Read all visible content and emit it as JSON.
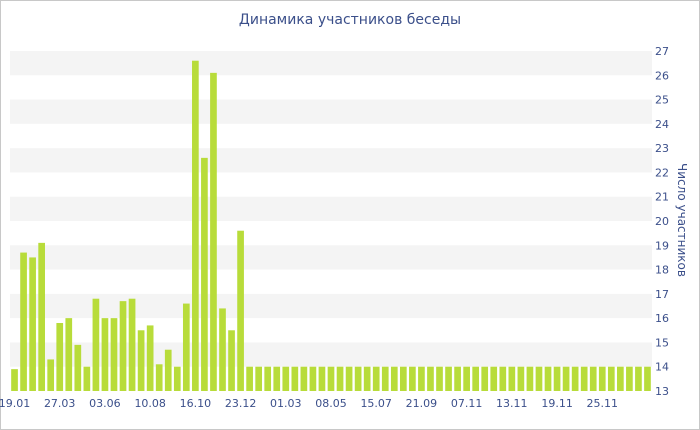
{
  "chart_data": {
    "type": "bar",
    "title": "Динамика участников беседы",
    "xlabel": "",
    "ylabel": "Число участников",
    "ylim": [
      13,
      27
    ],
    "yticks": [
      13,
      14,
      15,
      16,
      17,
      18,
      19,
      20,
      21,
      22,
      23,
      24,
      25,
      26,
      27
    ],
    "xtick_labels": [
      "19.01",
      "27.03",
      "03.06",
      "10.08",
      "16.10",
      "23.12",
      "01.03",
      "08.05",
      "15.07",
      "21.09",
      "07.11",
      "13.11",
      "19.11",
      "25.11"
    ],
    "values": [
      13.9,
      18.7,
      18.5,
      19.1,
      14.3,
      15.8,
      16.0,
      14.9,
      14.0,
      16.8,
      16.0,
      16.0,
      16.7,
      16.8,
      15.5,
      15.7,
      14.1,
      14.7,
      14.0,
      16.6,
      26.6,
      22.6,
      26.1,
      16.4,
      15.5,
      19.6,
      14.0,
      14.0,
      14.0,
      14.0,
      14.0,
      14.0,
      14.0,
      14.0,
      14.0,
      14.0,
      14.0,
      14.0,
      14.0,
      14.0,
      14.0,
      14.0,
      14.0,
      14.0,
      14.0,
      14.0,
      14.0,
      14.0,
      14.0,
      14.0,
      14.0,
      14.0,
      14.0,
      14.0,
      14.0,
      14.0,
      14.0,
      14.0,
      14.0,
      14.0,
      14.0,
      14.0,
      14.0,
      14.0,
      14.0,
      14.0,
      14.0,
      14.0,
      14.0,
      14.0,
      14.0
    ],
    "bar_color": "#b8dc3a",
    "stripe_color": "#f4f4f4",
    "axis_text_color": "#3b4f8a",
    "grid": "alternating horizontal bands",
    "legend": "none"
  }
}
